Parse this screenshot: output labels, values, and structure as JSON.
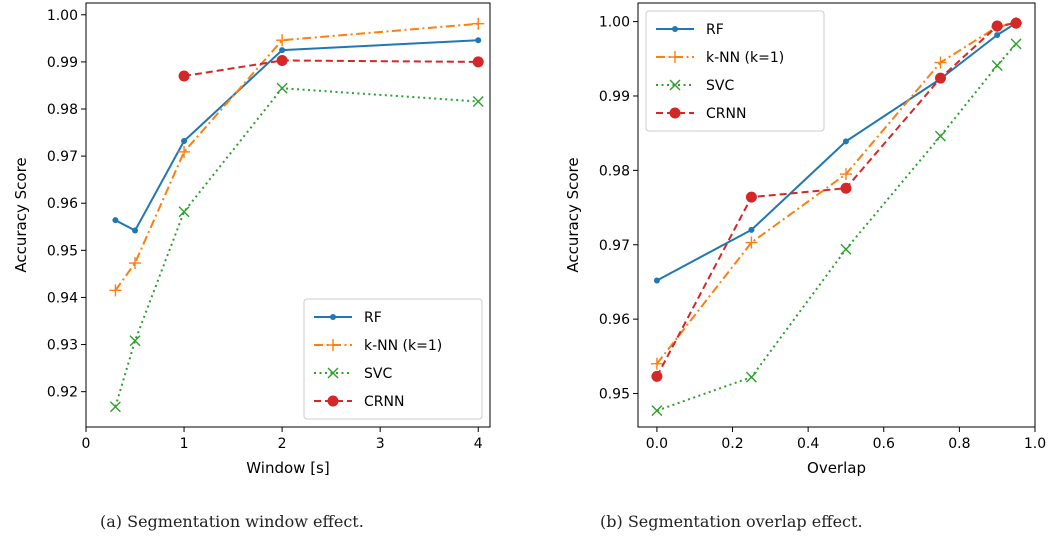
{
  "colors": {
    "RF": "#1f77b4",
    "k-NN (k=1)": "#ff7f0e",
    "SVC": "#2ca02c",
    "CRNN": "#d62728"
  },
  "captions": {
    "a": "(a) Segmentation window effect.",
    "b": "(b) Segmentation overlap effect."
  },
  "chart_data": [
    {
      "type": "line",
      "xlabel": "Window [s]",
      "ylabel": "Accuracy Score",
      "xlim": [
        0,
        4.12
      ],
      "ylim": [
        0.9125,
        1.0025
      ],
      "xticks": [
        0,
        1,
        2,
        3,
        4
      ],
      "xtick_labels": [
        "0",
        "1",
        "2",
        "3",
        "4"
      ],
      "yticks": [
        0.92,
        0.93,
        0.94,
        0.95,
        0.96,
        0.97,
        0.98,
        0.99,
        1.0
      ],
      "ytick_labels": [
        "0.92",
        "0.93",
        "0.94",
        "0.95",
        "0.96",
        "0.97",
        "0.98",
        "0.99",
        "1.00"
      ],
      "legend": "lower-right",
      "grid": false,
      "series": [
        {
          "name": "RF",
          "style": "solid",
          "marker": "dot",
          "x": [
            0.3,
            0.5,
            1,
            2,
            4
          ],
          "y": [
            0.9564,
            0.9542,
            0.9732,
            0.9925,
            0.9946
          ]
        },
        {
          "name": "k-NN (k=1)",
          "style": "dashdot",
          "marker": "plus",
          "x": [
            0.3,
            0.5,
            1,
            2,
            4
          ],
          "y": [
            0.9415,
            0.9473,
            0.9709,
            0.9946,
            0.9981
          ]
        },
        {
          "name": "SVC",
          "style": "dotted",
          "marker": "x",
          "x": [
            0.3,
            0.5,
            1,
            2,
            4
          ],
          "y": [
            0.9168,
            0.9308,
            0.9582,
            0.9844,
            0.9816
          ]
        },
        {
          "name": "CRNN",
          "style": "dashed",
          "marker": "bigdot",
          "x": [
            1,
            2,
            4
          ],
          "y": [
            0.987,
            0.9903,
            0.99
          ]
        }
      ]
    },
    {
      "type": "line",
      "xlabel": "Overlap",
      "ylabel": "Accuracy Score",
      "xlim": [
        -0.05,
        1.0
      ],
      "ylim": [
        0.9455,
        1.0025
      ],
      "xticks": [
        0.0,
        0.2,
        0.4,
        0.6,
        0.8,
        1.0
      ],
      "xtick_labels": [
        "0.0",
        "0.2",
        "0.4",
        "0.6",
        "0.8",
        "1.0"
      ],
      "yticks": [
        0.95,
        0.96,
        0.97,
        0.98,
        0.99,
        1.0
      ],
      "ytick_labels": [
        "0.95",
        "0.96",
        "0.97",
        "0.98",
        "0.99",
        "1.00"
      ],
      "legend": "top-left",
      "grid": false,
      "series": [
        {
          "name": "RF",
          "style": "solid",
          "marker": "dot",
          "x": [
            0,
            0.25,
            0.5,
            0.75,
            0.9,
            0.95
          ],
          "y": [
            0.9652,
            0.972,
            0.9839,
            0.9923,
            0.9982,
            0.9998
          ]
        },
        {
          "name": "k-NN (k=1)",
          "style": "dashdot",
          "marker": "plus",
          "x": [
            0,
            0.25,
            0.5,
            0.75,
            0.9,
            0.95
          ],
          "y": [
            0.954,
            0.9703,
            0.9795,
            0.9945,
            0.9993,
            0.9998
          ]
        },
        {
          "name": "SVC",
          "style": "dotted",
          "marker": "x",
          "x": [
            0,
            0.25,
            0.5,
            0.75,
            0.9,
            0.95
          ],
          "y": [
            0.9477,
            0.9522,
            0.9694,
            0.9846,
            0.9941,
            0.997
          ]
        },
        {
          "name": "CRNN",
          "style": "dashed",
          "marker": "bigdot",
          "x": [
            0,
            0.25,
            0.5,
            0.75,
            0.9,
            0.95
          ],
          "y": [
            0.9523,
            0.9764,
            0.9776,
            0.9924,
            0.9994,
            0.9998
          ]
        }
      ]
    }
  ]
}
